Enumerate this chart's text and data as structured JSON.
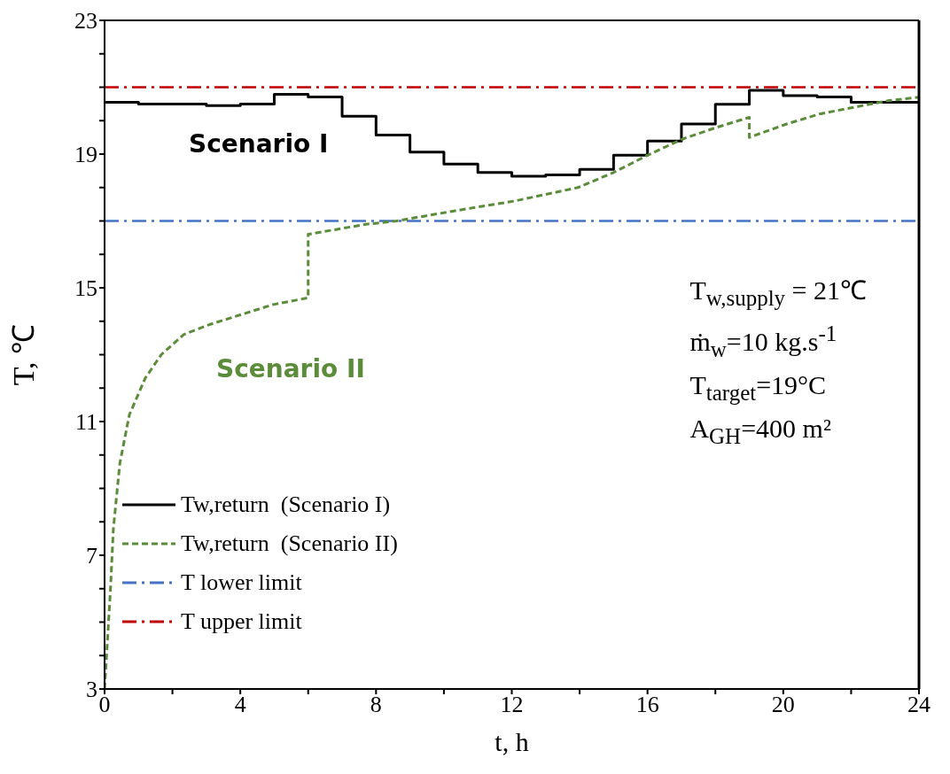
{
  "chart_data": {
    "type": "line",
    "xlabel": "t, h",
    "ylabel": "T, ℃",
    "xlim": [
      0,
      24
    ],
    "ylim": [
      3,
      23
    ],
    "xticks": [
      0,
      {
        "value": 2,
        "label": null
      },
      4,
      {
        "value": 6,
        "label": null
      },
      8,
      {
        "value": 10,
        "label": null
      },
      12,
      {
        "value": 14,
        "label": null
      },
      16,
      {
        "value": 18,
        "label": null
      },
      20,
      {
        "value": 22,
        "label": null
      },
      24
    ],
    "yticks": [
      3,
      {
        "value": 4,
        "label": null
      },
      {
        "value": 5,
        "label": null
      },
      {
        "value": 6,
        "label": null
      },
      7,
      {
        "value": 8,
        "label": null
      },
      {
        "value": 9,
        "label": null
      },
      {
        "value": 10,
        "label": null
      },
      11,
      {
        "value": 12,
        "label": null
      },
      {
        "value": 13,
        "label": null
      },
      {
        "value": 14,
        "label": null
      },
      15,
      {
        "value": 16,
        "label": null
      },
      {
        "value": 17,
        "label": null
      },
      {
        "value": 18,
        "label": null
      },
      19,
      {
        "value": 20,
        "label": null
      },
      {
        "value": 21,
        "label": null
      },
      {
        "value": 22,
        "label": null
      },
      23
    ],
    "legend": "bottom left",
    "marker": "none",
    "series": [
      {
        "name": "Tw,return  (Scenario I)",
        "type": "step",
        "color": "#000000",
        "line_style": "solid",
        "x": [
          0,
          1,
          2,
          3,
          4,
          5,
          6,
          7,
          8,
          9,
          10,
          11,
          12,
          13,
          14,
          15,
          16,
          17,
          18,
          19,
          20,
          21,
          22,
          23,
          24
        ],
        "values": [
          20.55,
          20.5,
          20.5,
          20.45,
          20.5,
          20.79,
          20.71,
          20.13,
          19.57,
          19.06,
          18.7,
          18.45,
          18.34,
          18.38,
          18.54,
          18.97,
          19.39,
          19.9,
          20.49,
          20.91,
          20.75,
          20.71,
          20.55,
          20.55,
          20.55
        ]
      },
      {
        "name": "Tw,return  (Scenario II)",
        "color": "#5b8c3a",
        "line_style": "dashed",
        "x": [
          0,
          0.17,
          0.26,
          0.45,
          0.73,
          1.2,
          1.67,
          2.33,
          3.09,
          4.03,
          4.97,
          6,
          6,
          7.7,
          8.6,
          10.3,
          12.1,
          13.95,
          15,
          15.97,
          17.03,
          18.04,
          19,
          19,
          20.1,
          21.07,
          22.08,
          23.1,
          24
        ],
        "values": [
          3,
          5.9,
          7.8,
          9.75,
          11.2,
          12.3,
          13,
          13.6,
          13.9,
          14.2,
          14.5,
          14.7,
          16.6,
          16.9,
          17,
          17.3,
          17.6,
          18,
          18.45,
          18.95,
          19.45,
          19.8,
          20.1,
          19.5,
          19.9,
          20.2,
          20.4,
          20.6,
          20.7
        ]
      }
    ],
    "ref_lines": [
      {
        "axis": "y",
        "value": 17,
        "label": "T lower limit",
        "color": "#4472c4",
        "line_style": "dashdot"
      },
      {
        "axis": "y",
        "value": 21,
        "label": "T upper limit",
        "color": "#c00000",
        "line_style": "dashdot"
      }
    ],
    "annotations": [
      "Scenario I",
      "Scenario II",
      "T$_{w,supply}$ = 21℃",
      "ṁ$_{w}$=10 kg.s$^{-1}$",
      "T$_{target}$=19°C",
      "A$_{GH}$=400 m²"
    ]
  }
}
